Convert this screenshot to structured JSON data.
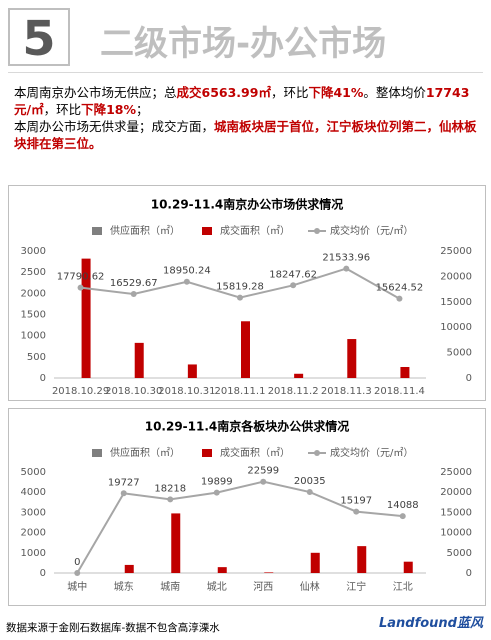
{
  "header": {
    "number": "5",
    "title": "二级市场-办公市场"
  },
  "summary": {
    "line1": [
      "本周南京办公市场无供应；总",
      "成交6563.99㎡",
      "，环比",
      "下降41%",
      "。整体均价",
      "17743元/㎡",
      "，环比",
      "下降18%",
      "；"
    ],
    "line2": [
      "本周办公市场无供求量；成交方面，",
      "城南板块居于首位，江宁板块位列第二，仙林板块排在第三位。"
    ]
  },
  "chart_data": [
    {
      "type": "bar-line",
      "title": "10.29-11.4南京办公市场供求情况",
      "categories": [
        "2018.10.29",
        "2018.10.30",
        "2018.10.31",
        "2018.11.1",
        "2018.11.2",
        "2018.11.3",
        "2018.11.4"
      ],
      "series": [
        {
          "name": "供应面积（㎡）",
          "color": "#7f7f7f",
          "values": [
            0,
            0,
            0,
            0,
            0,
            0,
            0
          ]
        },
        {
          "name": "成交面积（㎡）",
          "color": "#c00000",
          "values": [
            2820,
            830,
            320,
            1340,
            100,
            920,
            260
          ]
        },
        {
          "name": "成交均价（元/㎡）",
          "color": "#a6a6a6",
          "axis": "y2",
          "values": [
            17790.62,
            16529.67,
            18950.24,
            15819.28,
            18247.62,
            21533.96,
            15624.52
          ]
        }
      ],
      "ylim": [
        0,
        3000
      ],
      "yticks": [
        0,
        500,
        1000,
        1500,
        2000,
        2500,
        3000
      ],
      "y2lim": [
        0,
        25000
      ],
      "y2ticks": [
        0,
        5000,
        10000,
        15000,
        20000,
        25000
      ],
      "legend": "top"
    },
    {
      "type": "bar-line",
      "title": "10.29-11.4南京各板块办公供求情况",
      "categories": [
        "城中",
        "城东",
        "城南",
        "城北",
        "河西",
        "仙林",
        "江宁",
        "江北"
      ],
      "series": [
        {
          "name": "供应面积（㎡）",
          "color": "#7f7f7f",
          "values": [
            0,
            0,
            0,
            0,
            0,
            0,
            0,
            0
          ]
        },
        {
          "name": "成交面积（㎡）",
          "color": "#c00000",
          "values": [
            0,
            400,
            2950,
            290,
            30,
            1000,
            1330,
            560
          ]
        },
        {
          "name": "成交均价（元/㎡）",
          "color": "#a6a6a6",
          "axis": "y2",
          "values": [
            0,
            19727,
            18218,
            19899,
            22599,
            20035,
            15197,
            14088
          ]
        }
      ],
      "ylim": [
        0,
        5000
      ],
      "yticks": [
        0,
        1000,
        2000,
        3000,
        4000,
        5000
      ],
      "y2lim": [
        0,
        25000
      ],
      "y2ticks": [
        0,
        5000,
        10000,
        15000,
        20000,
        25000
      ],
      "legend": "top"
    }
  ],
  "footer": {
    "source": "数据来源于金刚石数据库-数据不包含高淳溧水",
    "logo": "Landfound",
    "logo_cn": "蓝风"
  }
}
